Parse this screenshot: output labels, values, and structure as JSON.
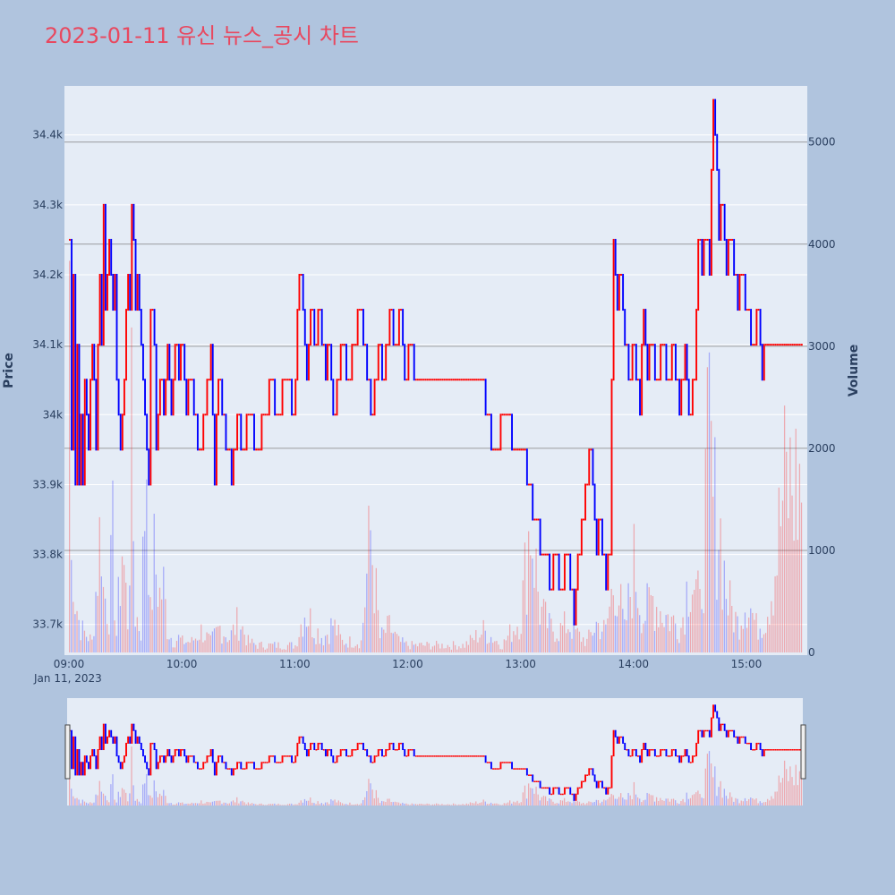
{
  "title": "2023-01-11 유신 뉴스_공시 차트",
  "colors": {
    "page_background": "#b0c4de",
    "plot_background": "#e5ecf6",
    "increasing": "#ff0000",
    "decreasing": "#0000ff",
    "title": "#e8485f",
    "volume_gridline": "#808080"
  },
  "chart_data": {
    "type": "candlestick",
    "x_start": "09:00",
    "x_end": "15:30",
    "x_tick_labels": [
      "09:00",
      "10:00",
      "11:00",
      "12:00",
      "13:00",
      "14:00",
      "15:00"
    ],
    "x_date_label": "Jan 11, 2023",
    "y_left": {
      "label": "Price",
      "range": [
        33660,
        34470
      ],
      "tick_values": [
        33700,
        33800,
        33900,
        34000,
        34100,
        34200,
        34300,
        34400
      ],
      "tick_labels": [
        "33.7k",
        "33.8k",
        "33.9k",
        "34k",
        "34.1k",
        "34.2k",
        "34.3k",
        "34.4k"
      ]
    },
    "y_right": {
      "label": "Volume",
      "range": [
        0,
        5550
      ],
      "tick_values": [
        0,
        1000,
        2000,
        3000,
        4000,
        5000
      ],
      "tick_labels": [
        "0",
        "1000",
        "2000",
        "3000",
        "4000",
        "5000"
      ]
    },
    "price_path": [
      [
        "09:00",
        34250
      ],
      [
        "09:01",
        33950
      ],
      [
        "09:02",
        34200
      ],
      [
        "09:03",
        33900
      ],
      [
        "09:04",
        34100
      ],
      [
        "09:05",
        33900
      ],
      [
        "09:06",
        34000
      ],
      [
        "09:07",
        33900
      ],
      [
        "09:08",
        34050
      ],
      [
        "09:10",
        33950
      ],
      [
        "09:12",
        34100
      ],
      [
        "09:14",
        33950
      ],
      [
        "09:16",
        34200
      ],
      [
        "09:17",
        34100
      ],
      [
        "09:18",
        34300
      ],
      [
        "09:19",
        34150
      ],
      [
        "09:21",
        34250
      ],
      [
        "09:23",
        34150
      ],
      [
        "09:24",
        34200
      ],
      [
        "09:25",
        34050
      ],
      [
        "09:26",
        34000
      ],
      [
        "09:27",
        33950
      ],
      [
        "09:29",
        34050
      ],
      [
        "09:31",
        34200
      ],
      [
        "09:32",
        34150
      ],
      [
        "09:33",
        34300
      ],
      [
        "09:34",
        34250
      ],
      [
        "09:35",
        34150
      ],
      [
        "09:36",
        34200
      ],
      [
        "09:37",
        34150
      ],
      [
        "09:39",
        34050
      ],
      [
        "09:41",
        33950
      ],
      [
        "09:42",
        33900
      ],
      [
        "09:43",
        34150
      ],
      [
        "09:45",
        34100
      ],
      [
        "09:46",
        33950
      ],
      [
        "09:48",
        34050
      ],
      [
        "09:50",
        34000
      ],
      [
        "09:52",
        34100
      ],
      [
        "09:54",
        34000
      ],
      [
        "09:56",
        34100
      ],
      [
        "09:58",
        34050
      ],
      [
        "10:00",
        34100
      ],
      [
        "10:02",
        34000
      ],
      [
        "10:04",
        34050
      ],
      [
        "10:06",
        34000
      ],
      [
        "10:09",
        33950
      ],
      [
        "10:12",
        34000
      ],
      [
        "10:15",
        34100
      ],
      [
        "10:17",
        33900
      ],
      [
        "10:19",
        34050
      ],
      [
        "10:21",
        34000
      ],
      [
        "10:24",
        33950
      ],
      [
        "10:26",
        33900
      ],
      [
        "10:29",
        34000
      ],
      [
        "10:32",
        33950
      ],
      [
        "10:35",
        34000
      ],
      [
        "10:40",
        33950
      ],
      [
        "10:44",
        34000
      ],
      [
        "10:47",
        34050
      ],
      [
        "10:50",
        34000
      ],
      [
        "10:55",
        34050
      ],
      [
        "10:59",
        34000
      ],
      [
        "11:02",
        34200
      ],
      [
        "11:04",
        34150
      ],
      [
        "11:06",
        34050
      ],
      [
        "11:08",
        34150
      ],
      [
        "11:10",
        34100
      ],
      [
        "11:13",
        34150
      ],
      [
        "11:16",
        34050
      ],
      [
        "11:18",
        34100
      ],
      [
        "11:20",
        34000
      ],
      [
        "11:23",
        34050
      ],
      [
        "11:25",
        34100
      ],
      [
        "11:28",
        34050
      ],
      [
        "11:31",
        34100
      ],
      [
        "11:34",
        34150
      ],
      [
        "11:36",
        34100
      ],
      [
        "11:38",
        34050
      ],
      [
        "11:41",
        34000
      ],
      [
        "11:44",
        34100
      ],
      [
        "11:47",
        34050
      ],
      [
        "11:50",
        34150
      ],
      [
        "11:53",
        34100
      ],
      [
        "11:56",
        34150
      ],
      [
        "11:58",
        34050
      ],
      [
        "12:01",
        34100
      ],
      [
        "12:04",
        34050
      ],
      [
        "12:10",
        34050
      ],
      [
        "12:20",
        34050
      ],
      [
        "12:30",
        34050
      ],
      [
        "12:38",
        34050
      ],
      [
        "12:42",
        34000
      ],
      [
        "12:45",
        33950
      ],
      [
        "12:52",
        34000
      ],
      [
        "12:57",
        33950
      ],
      [
        "13:00",
        33950
      ],
      [
        "13:05",
        33900
      ],
      [
        "13:06",
        33850
      ],
      [
        "13:13",
        33800
      ],
      [
        "13:15",
        33750
      ],
      [
        "13:18",
        33800
      ],
      [
        "13:20",
        33750
      ],
      [
        "13:25",
        33800
      ],
      [
        "13:28",
        33700
      ],
      [
        "13:30",
        33800
      ],
      [
        "13:33",
        33850
      ],
      [
        "13:35",
        33900
      ],
      [
        "13:37",
        33950
      ],
      [
        "13:40",
        33800
      ],
      [
        "13:42",
        33850
      ],
      [
        "13:45",
        33750
      ],
      [
        "13:47",
        33800
      ],
      [
        "13:49",
        34250
      ],
      [
        "13:51",
        34150
      ],
      [
        "13:53",
        34200
      ],
      [
        "13:55",
        34100
      ],
      [
        "13:57",
        34050
      ],
      [
        "14:00",
        34100
      ],
      [
        "14:03",
        34000
      ],
      [
        "14:05",
        34150
      ],
      [
        "14:07",
        34050
      ],
      [
        "14:09",
        34100
      ],
      [
        "14:12",
        34050
      ],
      [
        "14:15",
        34100
      ],
      [
        "14:18",
        34050
      ],
      [
        "14:21",
        34100
      ],
      [
        "14:24",
        34000
      ],
      [
        "14:27",
        34100
      ],
      [
        "14:29",
        34000
      ],
      [
        "14:32",
        34050
      ],
      [
        "14:34",
        34250
      ],
      [
        "14:36",
        34200
      ],
      [
        "14:38",
        34250
      ],
      [
        "14:40",
        34200
      ],
      [
        "14:42",
        34450
      ],
      [
        "14:44",
        34350
      ],
      [
        "14:45",
        34250
      ],
      [
        "14:47",
        34300
      ],
      [
        "14:49",
        34200
      ],
      [
        "14:51",
        34250
      ],
      [
        "14:53",
        34200
      ],
      [
        "14:55",
        34150
      ],
      [
        "14:57",
        34200
      ],
      [
        "15:00",
        34150
      ],
      [
        "15:03",
        34100
      ],
      [
        "15:06",
        34150
      ],
      [
        "15:08",
        34050
      ],
      [
        "15:10",
        34100
      ]
    ],
    "volume_path": [
      [
        "09:00",
        5550
      ],
      [
        "09:01",
        1200
      ],
      [
        "09:02",
        1400
      ],
      [
        "09:03",
        800
      ],
      [
        "09:05",
        450
      ],
      [
        "09:07",
        300
      ],
      [
        "09:10",
        220
      ],
      [
        "09:12",
        150
      ],
      [
        "09:15",
        1200
      ],
      [
        "09:17",
        1900
      ],
      [
        "09:18",
        850
      ],
      [
        "09:21",
        600
      ],
      [
        "09:23",
        1500
      ],
      [
        "09:25",
        250
      ],
      [
        "09:28",
        1500
      ],
      [
        "09:31",
        450
      ],
      [
        "09:33",
        2800
      ],
      [
        "09:35",
        550
      ],
      [
        "09:38",
        300
      ],
      [
        "09:41",
        3000
      ],
      [
        "09:43",
        500
      ],
      [
        "09:45",
        1300
      ],
      [
        "09:48",
        800
      ],
      [
        "09:50",
        900
      ],
      [
        "09:52",
        350
      ],
      [
        "09:55",
        150
      ],
      [
        "09:58",
        200
      ],
      [
        "10:00",
        150
      ],
      [
        "10:05",
        150
      ],
      [
        "10:10",
        300
      ],
      [
        "10:15",
        150
      ],
      [
        "10:20",
        350
      ],
      [
        "10:25",
        200
      ],
      [
        "10:30",
        450
      ],
      [
        "10:35",
        150
      ],
      [
        "10:40",
        100
      ],
      [
        "10:50",
        100
      ],
      [
        "11:00",
        100
      ],
      [
        "11:05",
        600
      ],
      [
        "11:10",
        350
      ],
      [
        "11:15",
        200
      ],
      [
        "11:20",
        400
      ],
      [
        "11:25",
        150
      ],
      [
        "11:30",
        150
      ],
      [
        "11:35",
        150
      ],
      [
        "11:40",
        1650
      ],
      [
        "11:45",
        200
      ],
      [
        "11:50",
        350
      ],
      [
        "11:55",
        150
      ],
      [
        "12:00",
        100
      ],
      [
        "12:10",
        100
      ],
      [
        "12:20",
        100
      ],
      [
        "12:30",
        100
      ],
      [
        "12:40",
        300
      ],
      [
        "12:50",
        100
      ],
      [
        "13:00",
        500
      ],
      [
        "13:05",
        1900
      ],
      [
        "13:10",
        600
      ],
      [
        "13:15",
        350
      ],
      [
        "13:20",
        300
      ],
      [
        "13:25",
        400
      ],
      [
        "13:30",
        250
      ],
      [
        "13:35",
        150
      ],
      [
        "13:40",
        400
      ],
      [
        "13:45",
        300
      ],
      [
        "13:50",
        1100
      ],
      [
        "13:55",
        300
      ],
      [
        "14:00",
        1200
      ],
      [
        "14:05",
        500
      ],
      [
        "14:10",
        750
      ],
      [
        "14:15",
        550
      ],
      [
        "14:20",
        450
      ],
      [
        "14:25",
        350
      ],
      [
        "14:30",
        1200
      ],
      [
        "14:35",
        600
      ],
      [
        "14:40",
        2900
      ],
      [
        "14:42",
        2000
      ],
      [
        "14:45",
        1900
      ],
      [
        "14:48",
        1100
      ],
      [
        "14:50",
        700
      ],
      [
        "14:55",
        400
      ],
      [
        "15:00",
        800
      ],
      [
        "15:05",
        350
      ],
      [
        "15:10",
        500
      ],
      [
        "15:15",
        1200
      ],
      [
        "15:20",
        2300
      ]
    ]
  }
}
